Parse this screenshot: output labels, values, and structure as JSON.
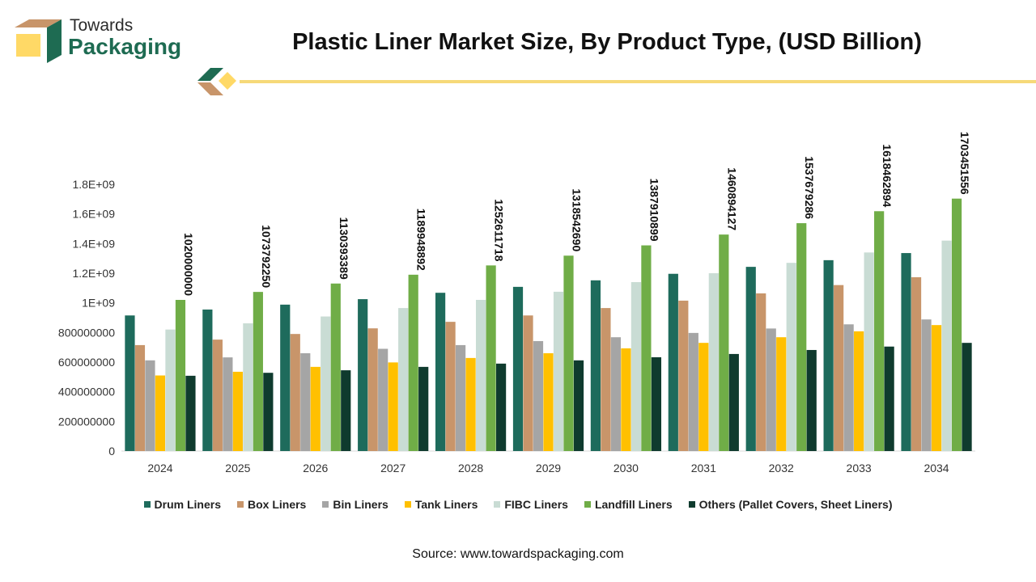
{
  "brand": {
    "line1": "Towards",
    "line2": "Packaging"
  },
  "title": "Plastic Liner Market Size, By Product Type, (USD Billion)",
  "source": "Source: www.towardspackaging.com",
  "chart_data": {
    "type": "bar",
    "categories": [
      "2024",
      "2025",
      "2026",
      "2027",
      "2028",
      "2029",
      "2030",
      "2031",
      "2032",
      "2033",
      "2034"
    ],
    "ylim": [
      0,
      1800000000
    ],
    "yticks": [
      {
        "value": 0,
        "label": "0"
      },
      {
        "value": 200000000,
        "label": "200000000"
      },
      {
        "value": 400000000,
        "label": "400000000"
      },
      {
        "value": 600000000,
        "label": "600000000"
      },
      {
        "value": 800000000,
        "label": "800000000"
      },
      {
        "value": 1000000000,
        "label": "1E+09"
      },
      {
        "value": 1200000000,
        "label": "1.2E+09"
      },
      {
        "value": 1400000000,
        "label": "1.4E+09"
      },
      {
        "value": 1600000000,
        "label": "1.6E+09"
      },
      {
        "value": 1800000000,
        "label": "1.8E+09"
      }
    ],
    "legend_position": "bottom",
    "series": [
      {
        "name": "Drum Liners",
        "color": "#1e6b5c",
        "values": [
          915000000,
          955000000,
          988000000,
          1025000000,
          1068000000,
          1108000000,
          1152000000,
          1196000000,
          1243000000,
          1288000000,
          1336000000
        ]
      },
      {
        "name": "Box Liners",
        "color": "#c8956a",
        "values": [
          715000000,
          752000000,
          790000000,
          828000000,
          872000000,
          915000000,
          965000000,
          1015000000,
          1064000000,
          1120000000,
          1173000000
        ]
      },
      {
        "name": "Bin Liners",
        "color": "#a5a5a5",
        "values": [
          612000000,
          632000000,
          660000000,
          690000000,
          715000000,
          742000000,
          768000000,
          797000000,
          827000000,
          855000000,
          888000000
        ]
      },
      {
        "name": "Tank Liners",
        "color": "#ffc000",
        "values": [
          510000000,
          535000000,
          568000000,
          598000000,
          628000000,
          660000000,
          693000000,
          730000000,
          768000000,
          808000000,
          850000000
        ]
      },
      {
        "name": "FIBC Liners",
        "color": "#c9dcd4",
        "values": [
          820000000,
          862000000,
          908000000,
          965000000,
          1020000000,
          1075000000,
          1140000000,
          1200000000,
          1270000000,
          1340000000,
          1420000000
        ]
      },
      {
        "name": "Landfill Liners",
        "color": "#70ad47",
        "values": [
          1020000000,
          1073792250,
          1130393389,
          1189948892,
          1252611718,
          1318542690,
          1387910899,
          1460894127,
          1537679286,
          1618462894,
          1703451556
        ],
        "labels": [
          "1020000000",
          "1073792250",
          "1130393389",
          "1189948892",
          "1252611718",
          "1318542690",
          "1387910899",
          "1460894127",
          "1537679286",
          "1618462894",
          "1703451556"
        ]
      },
      {
        "name": "Others (Pallet Covers, Sheet Liners)",
        "color": "#0f3b2e",
        "values": [
          508000000,
          528000000,
          545000000,
          568000000,
          590000000,
          612000000,
          633000000,
          655000000,
          682000000,
          705000000,
          730000000
        ]
      }
    ]
  }
}
